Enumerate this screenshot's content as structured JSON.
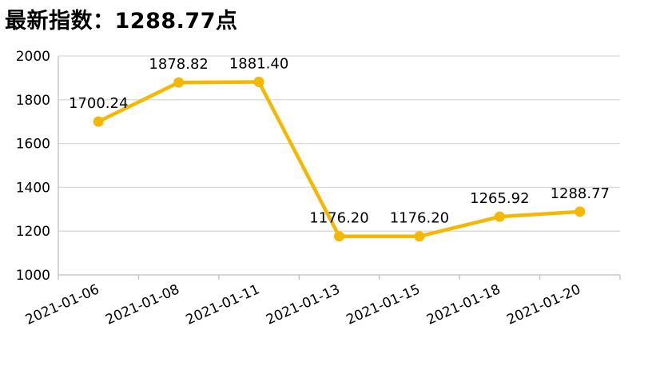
{
  "header": {
    "title": "最新指数：1288.77点"
  },
  "colors": {
    "series": "#F5B800",
    "grid": "#D9D9D9",
    "axis": "#BFBFBF"
  },
  "chart_data": {
    "type": "line",
    "title": "最新指数：1288.77点",
    "xlabel": "",
    "ylabel": "",
    "categories": [
      "2021-01-06",
      "2021-01-08",
      "2021-01-11",
      "2021-01-13",
      "2021-01-15",
      "2021-01-18",
      "2021-01-20"
    ],
    "series": [
      {
        "values": [
          1700.24,
          1878.82,
          1881.4,
          1176.2,
          1176.2,
          1265.92,
          1288.77
        ],
        "labels": [
          "1700.24",
          "1878.82",
          "1881.40",
          "1176.20",
          "1176.20",
          "1265.92",
          "1288.77"
        ]
      }
    ],
    "ylim": [
      1000,
      2000
    ],
    "yticks": [
      1000,
      1200,
      1400,
      1600,
      1800,
      2000
    ],
    "grid": true,
    "legend": "none"
  }
}
